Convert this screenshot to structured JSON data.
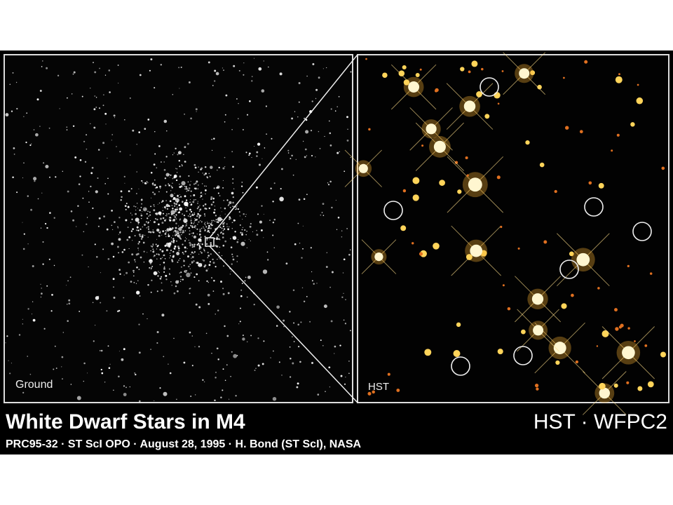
{
  "panels": {
    "left_label": "Ground",
    "right_label": "HST"
  },
  "caption": {
    "title": "White Dwarf Stars in M4",
    "instrument": "HST · WFPC2",
    "credit": "PRC95-32 · ST ScI OPO · August 28, 1995 · H. Bond (ST ScI), NASA"
  }
}
